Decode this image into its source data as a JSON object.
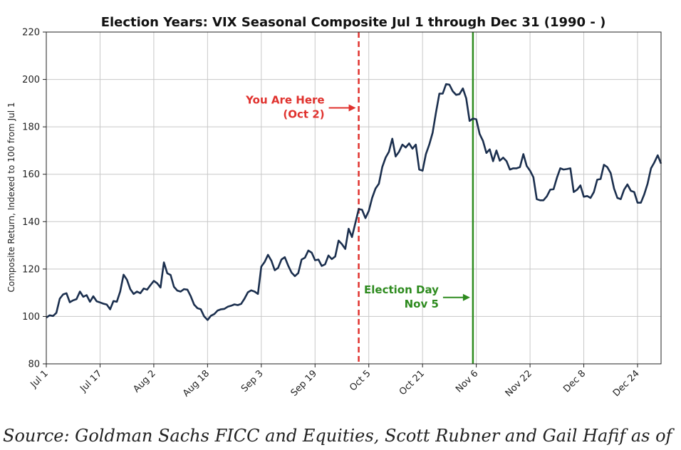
{
  "chart_data": {
    "type": "line",
    "title": "Election Years: VIX Seasonal Composite Jul 1 through Dec 31 (1990 - )",
    "ylabel": "Composite Return, Indexed to 100 from Jul 1",
    "xlabel": "",
    "ylim": [
      80,
      220
    ],
    "yticks": [
      80,
      100,
      120,
      140,
      160,
      180,
      200,
      220
    ],
    "xlim": [
      0,
      183
    ],
    "xticks": [
      {
        "label": "Jul 1",
        "day": 0
      },
      {
        "label": "Jul 17",
        "day": 16
      },
      {
        "label": "Aug 2",
        "day": 32
      },
      {
        "label": "Aug 18",
        "day": 48
      },
      {
        "label": "Sep 3",
        "day": 64
      },
      {
        "label": "Sep 19",
        "day": 80
      },
      {
        "label": "Oct 5",
        "day": 96
      },
      {
        "label": "Oct 21",
        "day": 112
      },
      {
        "label": "Nov 6",
        "day": 128
      },
      {
        "label": "Nov 22",
        "day": 144
      },
      {
        "label": "Dec 8",
        "day": 160
      },
      {
        "label": "Dec 24",
        "day": 176
      }
    ],
    "grid": true,
    "line_color": "#1b2f4e",
    "series": [
      {
        "values": [
          99.5,
          100.5,
          100.2,
          101.5,
          107.5,
          109.3,
          109.8,
          106.0,
          106.8,
          107.3,
          110.5,
          108.3,
          109.0,
          106.2,
          108.5,
          106.4,
          105.9,
          105.4,
          105.0,
          103.0,
          106.5,
          106.2,
          110.5,
          117.6,
          115.5,
          111.5,
          109.5,
          110.5,
          109.8,
          111.8,
          111.3,
          113.2,
          115.0,
          114.0,
          112.2,
          122.8,
          118.2,
          117.5,
          112.5,
          110.9,
          110.5,
          111.5,
          111.3,
          108.5,
          105.0,
          103.5,
          103.0,
          100.0,
          98.5,
          100.3,
          101.0,
          102.5,
          103.0,
          103.2,
          104.1,
          104.5,
          105.1,
          104.8,
          105.3,
          107.5,
          110.2,
          111.0,
          110.5,
          109.5,
          121.0,
          123.0,
          126.0,
          123.5,
          119.5,
          120.5,
          124.0,
          125.0,
          121.5,
          118.5,
          117.0,
          118.3,
          124.0,
          124.8,
          127.8,
          126.9,
          123.7,
          124.0,
          121.3,
          122.0,
          125.7,
          124.2,
          125.3,
          132.0,
          130.5,
          128.5,
          137.0,
          133.5,
          139.5,
          145.3,
          145.0,
          141.5,
          144.5,
          150.0,
          154.0,
          156.0,
          163.0,
          167.0,
          169.5,
          175.0,
          167.5,
          169.5,
          172.5,
          171.3,
          173.0,
          170.8,
          172.5,
          162.0,
          161.5,
          168.5,
          172.5,
          177.5,
          186.0,
          194.0,
          194.0,
          198.0,
          197.8,
          195.0,
          193.5,
          193.8,
          196.2,
          192.0,
          182.5,
          183.5,
          183.2,
          177.0,
          174.0,
          169.0,
          170.5,
          165.5,
          170.0,
          165.7,
          167.0,
          165.5,
          162.0,
          162.5,
          162.5,
          163.0,
          168.5,
          163.5,
          161.5,
          158.7,
          149.5,
          149.0,
          149.0,
          150.7,
          153.5,
          153.7,
          158.5,
          162.5,
          162.0,
          162.2,
          162.5,
          152.5,
          153.5,
          155.3,
          150.5,
          150.8,
          150.0,
          152.5,
          157.7,
          158.0,
          164.0,
          163.0,
          160.5,
          154.0,
          150.0,
          149.5,
          153.5,
          155.7,
          153.0,
          152.5,
          148.0,
          148.0,
          151.5,
          156.0,
          162.5,
          165.0,
          168.0,
          164.5
        ]
      }
    ],
    "annotations": [
      {
        "text_line1": "You Are Here",
        "text_line2": "(Oct 2)",
        "day": 93,
        "color": "#e0322e",
        "line_style": "dashed",
        "arrow_y": 188
      },
      {
        "text_line1": "Election Day",
        "text_line2": "Nov 5",
        "day": 127,
        "color": "#2e8b1f",
        "line_style": "solid",
        "arrow_y": 108
      }
    ]
  },
  "source": "Source: Goldman Sachs FICC and Equities, Scott Rubner and Gail Hafif as of"
}
